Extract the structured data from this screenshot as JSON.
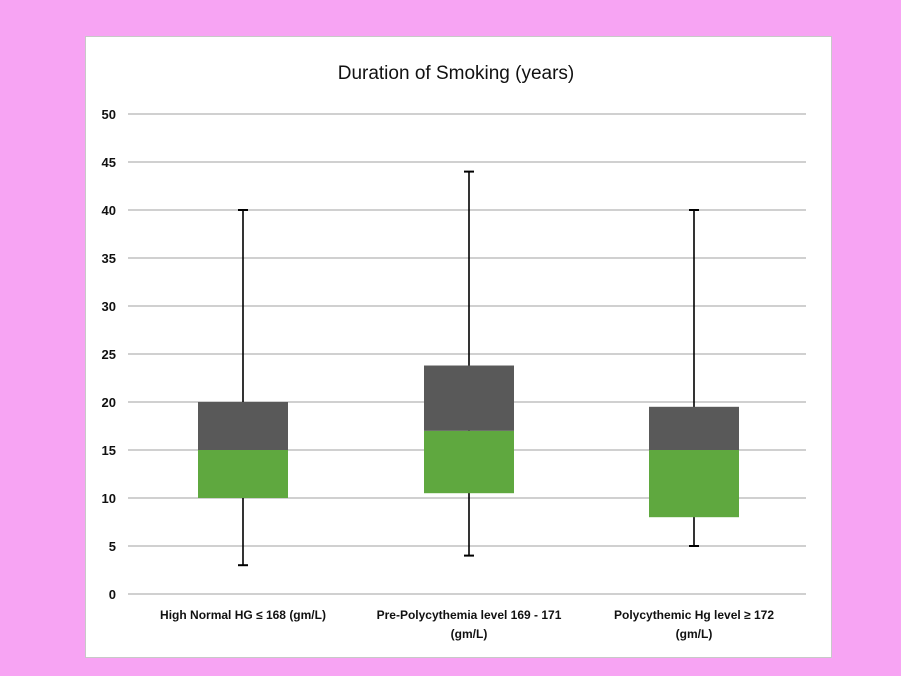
{
  "chart_data": {
    "type": "box",
    "title": "Duration of Smoking (years)",
    "xlabel": "",
    "ylabel": "",
    "ylim": [
      0,
      50
    ],
    "yticks": [
      0,
      5,
      10,
      15,
      20,
      25,
      30,
      35,
      40,
      45,
      50
    ],
    "grid": true,
    "legend": "none",
    "colors": {
      "lower_box": "#5fa83f",
      "upper_box": "#595959",
      "whisker": "#000000",
      "grid": "#b5b5b5",
      "background": "#f7a4f3"
    },
    "categories": [
      [
        "High Normal HG ≤ 168 (gm/L)"
      ],
      [
        "Pre-Polycythemia level 169 - 171",
        "(gm/L)"
      ],
      [
        "Polycythemic Hg level ≥ 172",
        "(gm/L)"
      ]
    ],
    "boxes": [
      {
        "min": 3,
        "q1": 10,
        "median": 15,
        "q3": 20,
        "max": 40
      },
      {
        "min": 4,
        "q1": 10.5,
        "median": 17,
        "q3": 23.8,
        "max": 44
      },
      {
        "min": 5,
        "q1": 8,
        "median": 15,
        "q3": 19.5,
        "max": 40
      }
    ]
  }
}
